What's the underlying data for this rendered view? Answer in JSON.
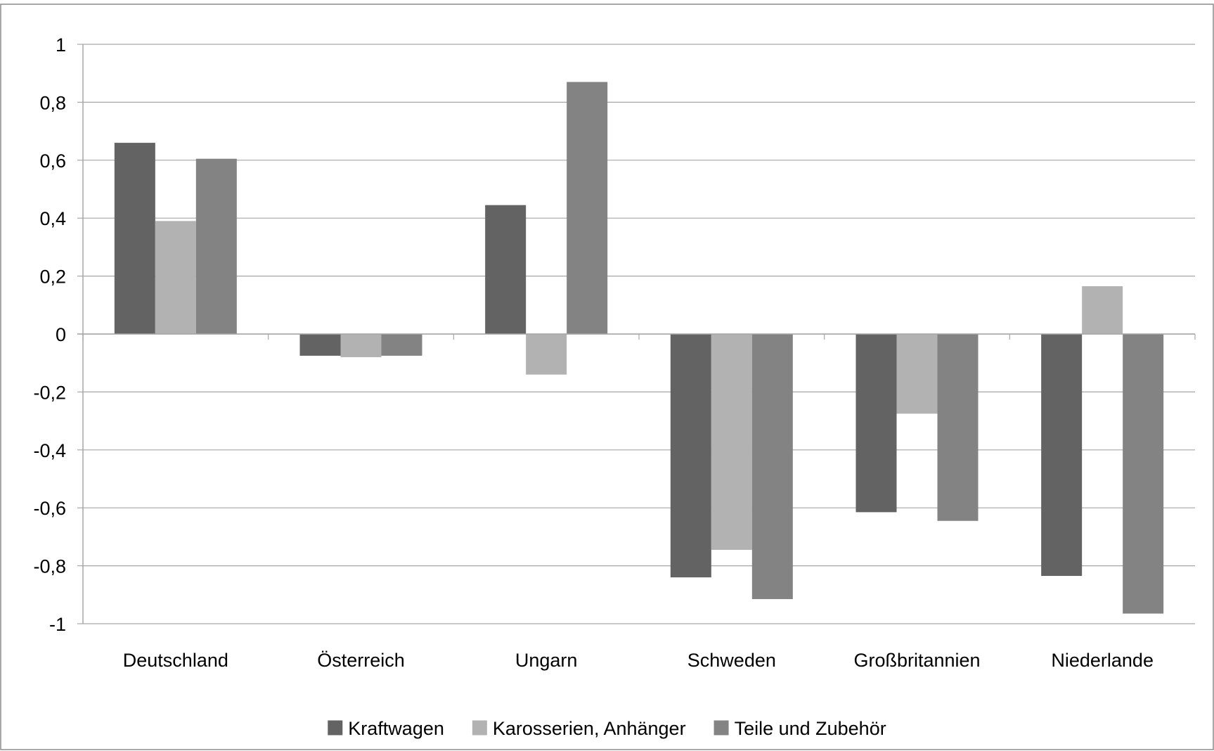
{
  "chart_data": {
    "type": "bar",
    "title": "",
    "xlabel": "",
    "ylabel": "",
    "categories": [
      "Deutschland",
      "Österreich",
      "Ungarn",
      "Schweden",
      "Großbritannien",
      "Niederlande"
    ],
    "series": [
      {
        "name": "Kraftwagen",
        "color": "#636363",
        "values": [
          0.66,
          -0.075,
          0.445,
          -0.84,
          -0.615,
          -0.835
        ]
      },
      {
        "name": "Karosserien, Anhänger",
        "color": "#b2b2b2",
        "values": [
          0.39,
          -0.08,
          -0.14,
          -0.745,
          -0.275,
          0.165
        ]
      },
      {
        "name": "Teile und Zubehör",
        "color": "#838383",
        "values": [
          0.605,
          -0.075,
          0.87,
          -0.915,
          -0.645,
          -0.965
        ]
      }
    ],
    "ylim": [
      -1,
      1
    ],
    "yticks": [
      1,
      0.8,
      0.6,
      0.4,
      0.2,
      0,
      -0.2,
      -0.4,
      -0.6,
      -0.8,
      -1
    ],
    "ytick_labels": [
      "1",
      "0,8",
      "0,6",
      "0,4",
      "0,2",
      "0",
      "-0,2",
      "-0,4",
      "-0,6",
      "-0,8",
      "-1"
    ],
    "grid": true,
    "legend_position": "bottom",
    "colors": {
      "gridline": "#a6a6a6",
      "frame": "#8c8c8c",
      "axis": "#a6a6a6"
    }
  }
}
